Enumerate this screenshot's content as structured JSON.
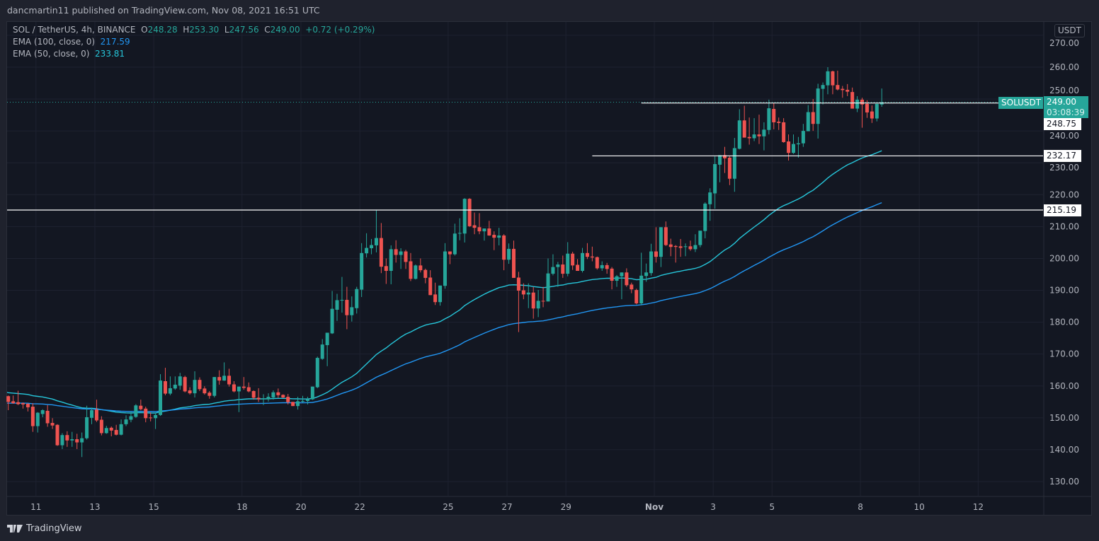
{
  "header": {
    "published": "dancmartin11 published on TradingView.com, Nov 08, 2021 16:51 UTC"
  },
  "legend": {
    "symbol": "SOL / TetherUS, 4h, BINANCE",
    "o_label": "O",
    "o": "248.28",
    "h_label": "H",
    "h": "253.30",
    "l_label": "L",
    "l": "247.56",
    "c_label": "C",
    "c": "249.00",
    "change": "+0.72 (+0.29%)",
    "ema100_label": "EMA (100, close, 0)",
    "ema100_value": "217.59",
    "ema50_label": "EMA (50, close, 0)",
    "ema50_value": "233.81"
  },
  "axis": {
    "currency_button": "USDT"
  },
  "tags": {
    "symbol_tag": "SOLUSDT",
    "last_price": "249.00",
    "countdown": "03:08:39",
    "level_1": "248.75",
    "level_2": "232.17",
    "level_3": "215.19"
  },
  "footer": {
    "brand": "TradingView"
  },
  "colors": {
    "up": "#26a69a",
    "down": "#ef5350",
    "ema50": "#26c6da",
    "ema100": "#2196f3",
    "level": "#ffffff",
    "last_price": "#26a69a"
  },
  "chart_data": {
    "type": "candlestick",
    "title": "SOL / TetherUS, 4h, BINANCE",
    "ylim": [
      125,
      275
    ],
    "y_ticks": [
      "130.00",
      "140.00",
      "150.00",
      "160.00",
      "170.00",
      "180.00",
      "190.00",
      "200.00",
      "210.00",
      "220.00",
      "230.00",
      "240.00",
      "250.00",
      "260.00",
      "270.00"
    ],
    "x_ticks": [
      {
        "label": "11",
        "day": 0
      },
      {
        "label": "13",
        "day": 2
      },
      {
        "label": "15",
        "day": 4
      },
      {
        "label": "18",
        "day": 7
      },
      {
        "label": "20",
        "day": 9
      },
      {
        "label": "22",
        "day": 11
      },
      {
        "label": "25",
        "day": 14
      },
      {
        "label": "27",
        "day": 16
      },
      {
        "label": "29",
        "day": 18
      },
      {
        "label": "Nov",
        "day": 21,
        "bold": true
      },
      {
        "label": "3",
        "day": 23
      },
      {
        "label": "5",
        "day": 25
      },
      {
        "label": "8",
        "day": 28
      },
      {
        "label": "10",
        "day": 30
      },
      {
        "label": "12",
        "day": 32
      }
    ],
    "first_candle_day": -0.94,
    "candle_hours": 4,
    "horizontal_levels": [
      {
        "price": 248.75,
        "from_candle": 129
      },
      {
        "price": 232.17,
        "from_candle": 119
      },
      {
        "price": 215.19,
        "from_candle": 0
      }
    ],
    "last_price": 249.0,
    "ema": [
      {
        "name": "EMA 50",
        "period": 50,
        "start_value": 158.0,
        "color": "#26c6da"
      },
      {
        "name": "EMA 100",
        "period": 100,
        "start_value": 154.6,
        "color": "#2196f3"
      }
    ],
    "ohlc": [
      [
        156.8,
        157,
        152.4,
        155.0
      ],
      [
        155.2,
        157,
        154.4,
        154.6
      ],
      [
        154.9,
        158.5,
        154,
        154.3
      ],
      [
        154.6,
        154.8,
        152.9,
        154.2
      ],
      [
        154.4,
        154.6,
        152,
        153.3
      ],
      [
        153.5,
        154.6,
        145.6,
        147.4
      ],
      [
        147.4,
        151.8,
        145.4,
        151.6
      ],
      [
        151.2,
        152.7,
        150.2,
        152.4
      ],
      [
        152.2,
        154,
        147.2,
        148.3
      ],
      [
        148.4,
        149.9,
        146.5,
        147.6
      ],
      [
        147.8,
        148,
        141.2,
        141.4
      ],
      [
        141.4,
        145.2,
        140.2,
        144.6
      ],
      [
        144.6,
        145.8,
        140.9,
        142.9
      ],
      [
        142.9,
        145.6,
        140.9,
        143.3
      ],
      [
        143.3,
        145,
        140.2,
        142.3
      ],
      [
        142.3,
        145.4,
        137.7,
        143.6
      ],
      [
        143.6,
        153.8,
        143.2,
        150.2
      ],
      [
        150,
        153.2,
        148,
        152.4
      ],
      [
        152.6,
        155.7,
        148.7,
        149.2
      ],
      [
        149.4,
        150.5,
        144.5,
        145.2
      ],
      [
        145.2,
        147.5,
        145,
        146.8
      ],
      [
        146.9,
        147.3,
        144.2,
        146
      ],
      [
        146.2,
        147.8,
        144.5,
        144.7
      ],
      [
        144.7,
        149.5,
        144.5,
        148
      ],
      [
        148,
        150.8,
        147.4,
        149.5
      ],
      [
        149.4,
        152,
        148.6,
        150.5
      ],
      [
        150.3,
        154.3,
        150,
        153.9
      ],
      [
        153.8,
        155.7,
        152.4,
        152.7
      ],
      [
        152.9,
        153.5,
        148.6,
        149.9
      ],
      [
        150.1,
        151.7,
        148.9,
        149.9
      ],
      [
        149.9,
        151.6,
        146.5,
        150.9
      ],
      [
        150.9,
        163.7,
        150.6,
        161.7
      ],
      [
        161.5,
        165.7,
        157.1,
        157.6
      ],
      [
        157.6,
        163,
        157.1,
        159.3
      ],
      [
        159.2,
        163,
        158.8,
        160.4
      ],
      [
        160.1,
        164.1,
        158.8,
        163
      ],
      [
        162.8,
        163.2,
        158,
        158.3
      ],
      [
        158.6,
        159.6,
        157.3,
        157.7
      ],
      [
        157.7,
        164.6,
        156.4,
        161.9
      ],
      [
        161.9,
        162.7,
        158.4,
        159
      ],
      [
        159.2,
        159.9,
        157.3,
        157.7
      ],
      [
        157.9,
        158.4,
        156,
        156.9
      ],
      [
        156.9,
        162.8,
        156.4,
        162.8
      ],
      [
        162.8,
        164.9,
        160.4,
        161.7
      ],
      [
        161.7,
        167.4,
        161.6,
        163.2
      ],
      [
        163.2,
        165.4,
        159.8,
        160.5
      ],
      [
        160.5,
        161.5,
        158,
        158.3
      ],
      [
        158.3,
        159.8,
        151.8,
        159.8
      ],
      [
        159.8,
        162.8,
        158.8,
        159.4
      ],
      [
        159.6,
        161.1,
        158,
        158.3
      ],
      [
        158.4,
        158.6,
        155.7,
        156.3
      ],
      [
        156.3,
        159.3,
        155,
        155.8
      ],
      [
        155.9,
        157.4,
        154,
        156.1
      ],
      [
        155.8,
        157.7,
        155.1,
        156.6
      ],
      [
        156.4,
        158.6,
        155.7,
        158
      ],
      [
        158,
        159.2,
        156.3,
        157.1
      ],
      [
        157.2,
        157.4,
        156.2,
        156.4
      ],
      [
        156.6,
        157.5,
        154.2,
        154.9
      ],
      [
        155,
        155,
        153.7,
        153.7
      ],
      [
        153.7,
        156.6,
        152.6,
        155.2
      ],
      [
        155.2,
        156.9,
        154.8,
        155.3
      ],
      [
        155.3,
        156.6,
        154.2,
        155.8
      ],
      [
        155.8,
        159.8,
        155.6,
        159.8
      ],
      [
        159.6,
        169.2,
        159.3,
        168.8
      ],
      [
        168.5,
        174.7,
        168.2,
        173
      ],
      [
        172.8,
        176.7,
        166.2,
        176.7
      ],
      [
        176.5,
        189.8,
        176.3,
        184.2
      ],
      [
        183.9,
        188.9,
        180.4,
        186.9
      ],
      [
        186.8,
        194.2,
        183,
        187
      ],
      [
        187,
        191.1,
        177.8,
        182.2
      ],
      [
        182.2,
        188.1,
        180.2,
        184.7
      ],
      [
        184.4,
        191.1,
        182.7,
        190.4
      ],
      [
        190.2,
        204.8,
        187.9,
        201.7
      ],
      [
        201.6,
        207.9,
        200.3,
        203.3
      ],
      [
        203.2,
        206.1,
        201.3,
        204.2
      ],
      [
        204.1,
        215.2,
        201.9,
        206.4
      ],
      [
        206.4,
        211.1,
        195.4,
        197.4
      ],
      [
        197.6,
        200,
        192,
        196.1
      ],
      [
        196.1,
        204.1,
        191.9,
        202.9
      ],
      [
        202.9,
        205.7,
        198.7,
        201.1
      ],
      [
        201.1,
        203.2,
        196.7,
        202.2
      ],
      [
        202.2,
        202.7,
        196.7,
        198.9
      ],
      [
        199.1,
        201.7,
        192.9,
        193.6
      ],
      [
        193.6,
        198.1,
        193.4,
        197.8
      ],
      [
        197.8,
        200,
        195.6,
        196.3
      ],
      [
        196.4,
        196.8,
        192.2,
        193.9
      ],
      [
        194,
        196.3,
        188.5,
        188.5
      ],
      [
        188.7,
        192.4,
        185.4,
        186.3
      ],
      [
        186.3,
        191.5,
        185.2,
        191.5
      ],
      [
        191.4,
        204.8,
        190.5,
        202.2
      ],
      [
        202.2,
        202.2,
        198.2,
        201.3
      ],
      [
        201.3,
        210.9,
        200.9,
        207.8
      ],
      [
        207.8,
        212.6,
        205.7,
        208
      ],
      [
        207.8,
        218.9,
        205,
        218.7
      ],
      [
        218.7,
        218.9,
        209.9,
        210.1
      ],
      [
        210.4,
        214.4,
        207.6,
        209.6
      ],
      [
        209.8,
        214.2,
        207.6,
        208.5
      ],
      [
        208.5,
        209.4,
        205.6,
        209.4
      ],
      [
        209.4,
        211.8,
        207.1,
        207.2
      ],
      [
        207.4,
        208.5,
        202.6,
        206.5
      ],
      [
        206.5,
        209.6,
        204.1,
        207.2
      ],
      [
        207.2,
        207.6,
        196.3,
        199.6
      ],
      [
        199.6,
        204.7,
        198.3,
        203
      ],
      [
        203,
        205.6,
        193.9,
        193.9
      ],
      [
        194,
        195.8,
        176.9,
        189.9
      ],
      [
        190,
        192.2,
        187.2,
        188.7
      ],
      [
        188.7,
        192.2,
        184.4,
        189.3
      ],
      [
        189.3,
        191.1,
        181.1,
        184.3
      ],
      [
        184.3,
        190.1,
        181.6,
        186.7
      ],
      [
        186.7,
        191.1,
        184.7,
        186.5
      ],
      [
        186.5,
        200,
        186.5,
        195.3
      ],
      [
        195.2,
        201.3,
        194.7,
        197.3
      ],
      [
        197.3,
        198.9,
        191.1,
        198.1
      ],
      [
        198.1,
        200.9,
        193.9,
        195.2
      ],
      [
        195.2,
        205.1,
        194.4,
        201.5
      ],
      [
        201.5,
        202.1,
        196.4,
        197.8
      ],
      [
        198,
        199.8,
        196.1,
        196.1
      ],
      [
        196.1,
        203.3,
        195.6,
        201.7
      ],
      [
        201.7,
        204.8,
        199.8,
        200.5
      ],
      [
        200.6,
        203.7,
        199.1,
        200.3
      ],
      [
        200.4,
        200.6,
        196.5,
        196.9
      ],
      [
        196.9,
        199.1,
        196.1,
        197.9
      ],
      [
        197.9,
        198.6,
        195.2,
        196.7
      ],
      [
        196.8,
        197.3,
        190.3,
        193
      ],
      [
        193,
        194.8,
        191.1,
        194.4
      ],
      [
        194.4,
        195.6,
        187.2,
        195.6
      ],
      [
        195.6,
        196.9,
        191.1,
        191.6
      ],
      [
        191.8,
        192.4,
        189.1,
        190.3
      ],
      [
        190.1,
        190.5,
        185.6,
        185.9
      ],
      [
        185.9,
        201.8,
        185.3,
        194.6
      ],
      [
        194.5,
        198.4,
        192.7,
        195.6
      ],
      [
        195.4,
        204.6,
        194.6,
        202.2
      ],
      [
        202.2,
        209.8,
        198.7,
        200.5
      ],
      [
        200.5,
        209.8,
        197.3,
        209.8
      ],
      [
        209.8,
        211.6,
        203.9,
        204.2
      ],
      [
        204.4,
        206.2,
        200.7,
        203.6
      ],
      [
        203.9,
        204.2,
        198.7,
        203.6
      ],
      [
        203.8,
        206.1,
        200.5,
        203.3
      ],
      [
        203.6,
        204.7,
        200.7,
        203.8
      ],
      [
        203.8,
        205.6,
        202.4,
        202.9
      ],
      [
        202.9,
        207.6,
        202,
        204.2
      ],
      [
        204.2,
        208.7,
        203.5,
        208.7
      ],
      [
        208.6,
        217.6,
        206.3,
        217.2
      ],
      [
        217,
        222,
        211.8,
        220.7
      ],
      [
        220.4,
        232,
        215.6,
        229.6
      ],
      [
        229.4,
        232.4,
        223.9,
        232.4
      ],
      [
        232.4,
        235,
        226.8,
        231.4
      ],
      [
        231.6,
        232,
        223,
        225
      ],
      [
        225,
        237.8,
        220.9,
        234.6
      ],
      [
        234.4,
        246.8,
        234.2,
        243.3
      ],
      [
        243.3,
        247.9,
        237.9,
        237.9
      ],
      [
        238.1,
        244.2,
        235.7,
        237.7
      ],
      [
        237.7,
        244,
        236.8,
        238.9
      ],
      [
        238.9,
        245.1,
        235.9,
        238.3
      ],
      [
        238.3,
        242.7,
        233.9,
        240.4
      ],
      [
        240.3,
        249.8,
        238.9,
        247.1
      ],
      [
        246.9,
        248.7,
        240.5,
        242.7
      ],
      [
        242.9,
        244.2,
        240.3,
        242.5
      ],
      [
        242.7,
        244,
        236.3,
        236.5
      ],
      [
        236.7,
        238.9,
        230.7,
        233.1
      ],
      [
        233.1,
        238.9,
        232.8,
        235.9
      ],
      [
        235.8,
        238.1,
        231.6,
        236.1
      ],
      [
        236.1,
        242.2,
        235,
        240
      ],
      [
        239.9,
        248.1,
        239.9,
        245.9
      ],
      [
        245.9,
        250,
        240,
        242.2
      ],
      [
        242.2,
        254.8,
        237.6,
        253.3
      ],
      [
        253.2,
        255.2,
        248.3,
        254.4
      ],
      [
        254.3,
        260,
        251.5,
        258.7
      ],
      [
        258.7,
        258.9,
        251.5,
        254.3
      ],
      [
        254.4,
        258.9,
        252.7,
        253
      ],
      [
        253.2,
        254.1,
        250.4,
        252.8
      ],
      [
        252.9,
        254.7,
        250.9,
        252.3
      ],
      [
        252.2,
        253.6,
        247,
        247
      ],
      [
        247,
        250.9,
        245.9,
        249.8
      ],
      [
        249.8,
        250.4,
        241,
        248.3
      ],
      [
        248.5,
        249.6,
        244.1,
        245.8
      ],
      [
        246.1,
        248,
        242.5,
        243.9
      ],
      [
        243.9,
        248.5,
        243,
        248.5
      ],
      [
        248.28,
        253.3,
        247.56,
        249.0
      ]
    ]
  }
}
